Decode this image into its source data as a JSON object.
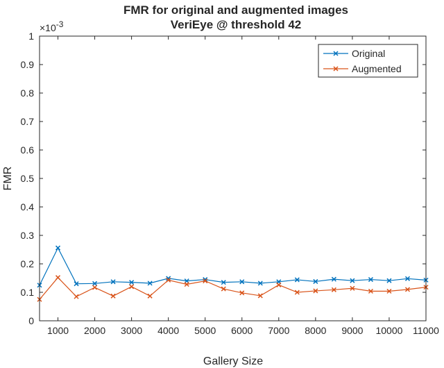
{
  "chart_data": {
    "type": "line",
    "title": "FMR for original and augmented images",
    "subtitle": "VeriEye @ threshold 42",
    "xlabel": "Gallery Size",
    "ylabel": "FMR",
    "y_exponent_label": "×10",
    "y_exponent_power": "-3",
    "xlim": [
      500,
      11000
    ],
    "ylim": [
      0,
      1
    ],
    "x_ticks": [
      1000,
      2000,
      3000,
      4000,
      5000,
      6000,
      7000,
      8000,
      9000,
      10000,
      11000
    ],
    "y_ticks": [
      0,
      0.1,
      0.2,
      0.3,
      0.4,
      0.5,
      0.6,
      0.7,
      0.8,
      0.9,
      1
    ],
    "grid": false,
    "legend_position": "top-right",
    "x": [
      500,
      1000,
      1500,
      2000,
      2500,
      3000,
      3500,
      4000,
      4500,
      5000,
      5500,
      6000,
      6500,
      7000,
      7500,
      8000,
      8500,
      9000,
      9500,
      10000,
      10500,
      11000
    ],
    "series": [
      {
        "name": "Original",
        "color": "#0072BD",
        "marker": "x",
        "values": [
          0.125,
          0.256,
          0.13,
          0.131,
          0.137,
          0.135,
          0.132,
          0.149,
          0.14,
          0.145,
          0.135,
          0.137,
          0.132,
          0.137,
          0.144,
          0.138,
          0.146,
          0.141,
          0.145,
          0.141,
          0.148,
          0.143
        ]
      },
      {
        "name": "Augmented",
        "color": "#D95319",
        "marker": "x",
        "values": [
          0.075,
          0.152,
          0.085,
          0.117,
          0.087,
          0.12,
          0.087,
          0.143,
          0.128,
          0.14,
          0.112,
          0.098,
          0.088,
          0.126,
          0.1,
          0.105,
          0.109,
          0.114,
          0.104,
          0.104,
          0.11,
          0.118
        ]
      }
    ]
  }
}
